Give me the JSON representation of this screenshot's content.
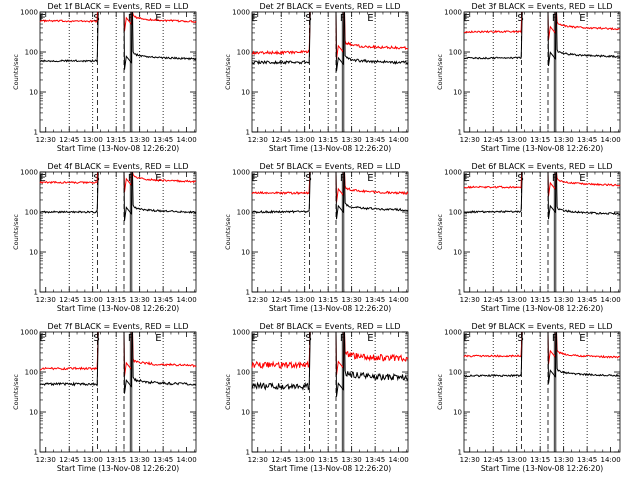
{
  "chart_data": {
    "type": "line",
    "layout": {
      "rows": 3,
      "cols": 3
    },
    "shared": {
      "xlabel": "Start Time (13-Nov-08 12:26:20)",
      "ylabel": "Counts/sec",
      "y_scale": "log",
      "ylim": [
        1,
        1000
      ],
      "y_ticks": [
        1,
        10,
        100,
        1000
      ],
      "y_tick_labels": [
        "1",
        "10",
        "100",
        "1000"
      ],
      "x_range_minutes": [
        "12:26:20",
        "14:06:00"
      ],
      "x_ticks": [
        "12:30",
        "12:45",
        "13:00",
        "13:15",
        "13:30",
        "13:45",
        "14:00"
      ],
      "series_colors": {
        "lld": "#ff0000",
        "events": "#000000"
      },
      "line_markers": [
        {
          "time": "12:45",
          "style": "dotted"
        },
        {
          "time": "13:00",
          "style": "dotted"
        },
        {
          "time": "13:03",
          "style": "dashed",
          "label": "S"
        },
        {
          "time": "13:15",
          "style": "dotted"
        },
        {
          "time": "13:20",
          "style": "dashed"
        },
        {
          "time": "13:24",
          "style": "solid"
        },
        {
          "time": "13:25",
          "style": "solid",
          "label": "F"
        },
        {
          "time": "13:30",
          "style": "dotted"
        },
        {
          "time": "13:45",
          "style": "dotted"
        }
      ],
      "corner_labels": [
        {
          "text": "E",
          "time": "12:26"
        },
        {
          "text": "E",
          "time": "13:40"
        }
      ]
    },
    "panels": [
      {
        "title": "Det 1f BLACK = Events, RED = LLD",
        "lld": [
          600,
          550,
          640
        ],
        "events": [
          60,
          60,
          75
        ],
        "noise": 0.05
      },
      {
        "title": "Det 2f BLACK = Events, RED = LLD",
        "lld": [
          95,
          110,
          140
        ],
        "events": [
          55,
          55,
          60
        ],
        "noise": 0.08
      },
      {
        "title": "Det 3f BLACK = Events, RED = LLD",
        "lld": [
          320,
          330,
          420
        ],
        "events": [
          70,
          75,
          85
        ],
        "noise": 0.05
      },
      {
        "title": "Det 4f BLACK = Events, RED = LLD",
        "lld": [
          550,
          520,
          640
        ],
        "events": [
          100,
          100,
          110
        ],
        "noise": 0.05
      },
      {
        "title": "Det 5f BLACK = Events, RED = LLD",
        "lld": [
          300,
          290,
          330
        ],
        "events": [
          100,
          110,
          125
        ],
        "noise": 0.06
      },
      {
        "title": "Det 6f BLACK = Events, RED = LLD",
        "lld": [
          420,
          410,
          520
        ],
        "events": [
          100,
          110,
          100
        ],
        "noise": 0.05
      },
      {
        "title": "Det 7f BLACK = Events, RED = LLD",
        "lld": [
          120,
          130,
          160
        ],
        "events": [
          50,
          48,
          55
        ],
        "noise": 0.07
      },
      {
        "title": "Det 8f BLACK = Events, RED = LLD",
        "lld": [
          150,
          140,
          240
        ],
        "events": [
          45,
          40,
          80
        ],
        "noise": 0.18
      },
      {
        "title": "Det 9f BLACK = Events, RED = LLD",
        "lld": [
          250,
          260,
          260
        ],
        "events": [
          80,
          85,
          90
        ],
        "noise": 0.05
      }
    ]
  }
}
